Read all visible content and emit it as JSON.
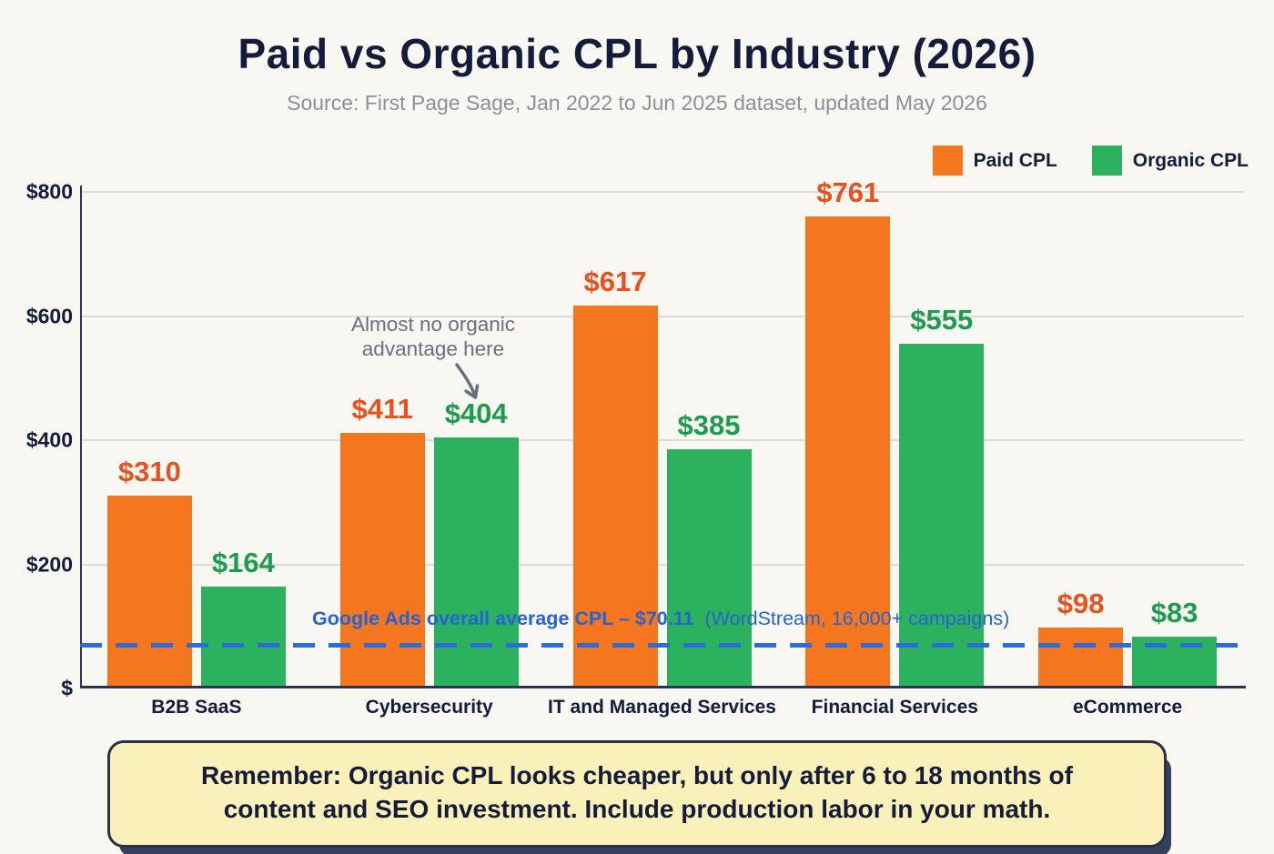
{
  "title": "Paid vs Organic CPL by Industry (2026)",
  "subtitle": "Source: First Page Sage, Jan 2022 to Jun 2025 dataset, updated May 2026",
  "legend": {
    "paid": "Paid CPL",
    "organic": "Organic CPL"
  },
  "colors": {
    "background": "#F8F7F2",
    "paid_bar": "#F4771F",
    "paid_label": "#E8511D",
    "organic_bar": "#2CB25F",
    "organic_label": "#1D9C4F",
    "navy_text": "#141C3A",
    "subtitle_gray": "#8A8F9A",
    "gridline": "#DCDCD6",
    "reference_blue": "#2B6CD9",
    "annotation_gray": "#68707F",
    "note_background": "#FAF0B9",
    "note_border": "#2A3045"
  },
  "chart_data": {
    "type": "bar",
    "categories": [
      "B2B SaaS",
      "Cybersecurity",
      "IT and Managed Services",
      "Financial Services",
      "eCommerce"
    ],
    "series": [
      {
        "name": "Paid CPL",
        "key": "paid",
        "color": "#F4771F",
        "label_color": "#E8511D",
        "values": [
          310,
          411,
          617,
          761,
          98
        ]
      },
      {
        "name": "Organic CPL",
        "key": "organic",
        "color": "#2CB25F",
        "label_color": "#1D9C4F",
        "values": [
          164,
          404,
          385,
          555,
          83
        ]
      }
    ],
    "value_prefix": "$",
    "ylim": [
      0,
      800
    ],
    "yticks": [
      {
        "value": 800,
        "label": "$800"
      },
      {
        "value": 600,
        "label": "$600"
      },
      {
        "value": 400,
        "label": "$400"
      },
      {
        "value": 200,
        "label": "$200"
      },
      {
        "value": 0,
        "label": "$"
      }
    ],
    "grid": true,
    "legend_position": "top-right",
    "reference_line": {
      "value": 70.11,
      "color": "#2B6CD9",
      "label_bold": "Google Ads overall average CPL – $70.11",
      "label_regular": "(WordStream, 16,000+ campaigns)"
    },
    "annotation": {
      "lines": [
        "Almost no organic",
        "advantage here"
      ],
      "target": "Cybersecurity Organic CPL bar"
    }
  },
  "note_lines": [
    "Remember: Organic CPL looks cheaper, but only after 6 to 18 months of",
    "content and SEO investment. Include production labor in your math."
  ]
}
